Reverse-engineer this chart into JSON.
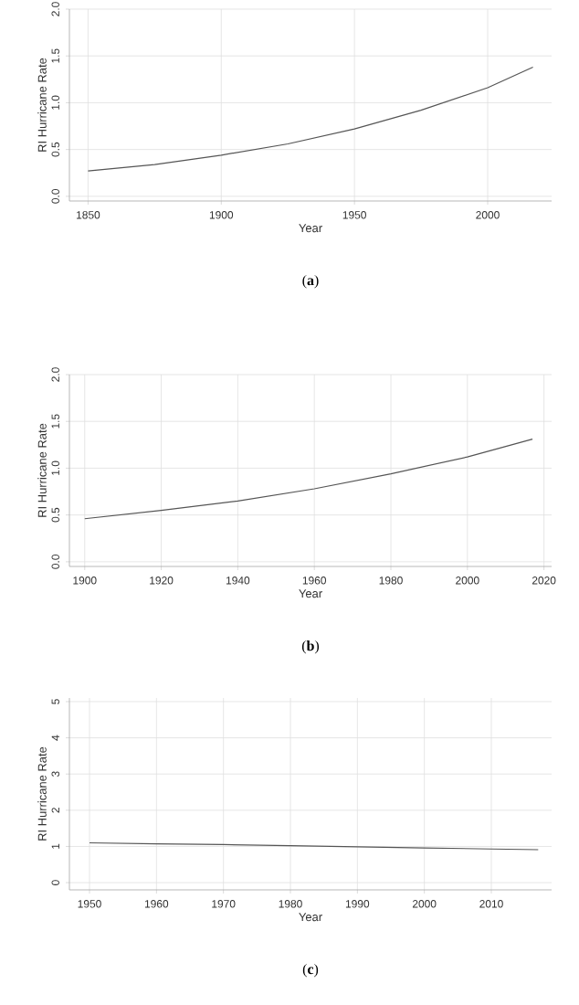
{
  "chart_data": [
    {
      "type": "line",
      "xlabel": "Year",
      "ylabel": "RI Hurricane Rate",
      "annotations": [
        "(**a**)"
      ],
      "grid": true,
      "x": [
        1850,
        1875,
        1900,
        1925,
        1950,
        1975,
        2000,
        2017
      ],
      "series": [
        {
          "color": "#555555",
          "values": [
            0.27,
            0.34,
            0.44,
            0.56,
            0.72,
            0.92,
            1.16,
            1.38
          ]
        }
      ],
      "xlim": [
        1843,
        2024
      ],
      "ylim": [
        -0.05,
        2.0
      ],
      "xticks": [
        1850,
        1900,
        1950,
        2000
      ],
      "yticks": [
        {
          "value": 0,
          "label": "0.0"
        },
        {
          "value": 0.5,
          "label": "0.5"
        },
        {
          "value": 1,
          "label": "1.0"
        },
        {
          "value": 1.5,
          "label": "1.5"
        },
        {
          "value": 2,
          "label": "2.0"
        }
      ]
    },
    {
      "type": "line",
      "xlabel": "Year",
      "ylabel": "RI Hurricane Rate",
      "annotations": [
        "(**b**)"
      ],
      "grid": true,
      "x": [
        1900,
        1920,
        1940,
        1960,
        1980,
        2000,
        2017
      ],
      "series": [
        {
          "color": "#555555",
          "values": [
            0.46,
            0.55,
            0.65,
            0.78,
            0.94,
            1.12,
            1.31
          ]
        }
      ],
      "xlim": [
        1896,
        2022
      ],
      "ylim": [
        -0.05,
        2.0
      ],
      "xticks": [
        1900,
        1920,
        1940,
        1960,
        1980,
        2000,
        2020
      ],
      "yticks": [
        {
          "value": 0,
          "label": "0.0"
        },
        {
          "value": 0.5,
          "label": "0.5"
        },
        {
          "value": 1,
          "label": "1.0"
        },
        {
          "value": 1.5,
          "label": "1.5"
        },
        {
          "value": 2,
          "label": "2.0"
        }
      ]
    },
    {
      "type": "line",
      "xlabel": "Year",
      "ylabel": "RI Hurricane Rate",
      "annotations": [
        "(**c**)"
      ],
      "grid": true,
      "x": [
        1950,
        1960,
        1970,
        1980,
        1990,
        2000,
        2010,
        2017
      ],
      "series": [
        {
          "color": "#555555",
          "values": [
            1.1,
            1.07,
            1.05,
            1.02,
            0.99,
            0.96,
            0.93,
            0.91
          ]
        }
      ],
      "xlim": [
        1947,
        2019
      ],
      "ylim": [
        -0.2,
        5.1
      ],
      "xticks": [
        1950,
        1960,
        1970,
        1980,
        1990,
        2000,
        2010
      ],
      "yticks": [
        0,
        1,
        2,
        3,
        4,
        5
      ]
    }
  ]
}
